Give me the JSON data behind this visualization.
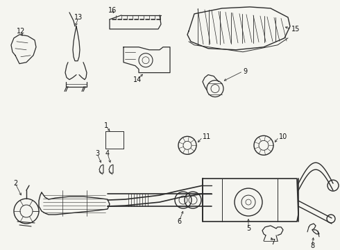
{
  "bg_color": "#f5f5f0",
  "fig_width": 4.9,
  "fig_height": 3.6,
  "dpi": 100,
  "line_color": "#2a2a2a",
  "label_fontsize": 7.0,
  "label_color": "#111111"
}
